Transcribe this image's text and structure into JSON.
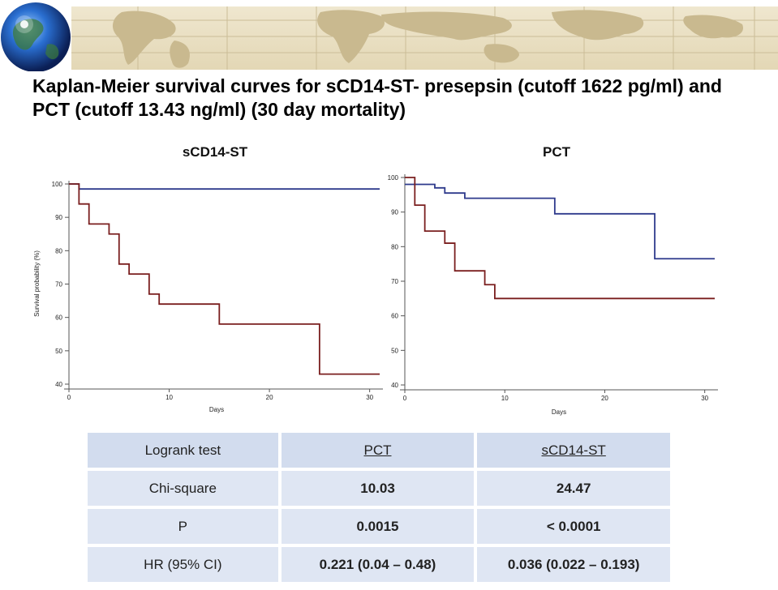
{
  "title": "Kaplan-Meier survival curves for sCD14-ST- presepsin (cutoff 1622 pg/ml) and PCT (cutoff 13.43 ng/ml) (30 day mortality)",
  "colors": {
    "low_group": "#2e3a8c",
    "high_group": "#7a1f1f",
    "banner": "#e8dfc4",
    "table_cell": "#dfe6f3"
  },
  "chart_data": [
    {
      "type": "line",
      "step": true,
      "title": "sCD14-ST",
      "xlabel": "Days",
      "ylabel": "Survival probability (%)",
      "xlim": [
        0,
        31
      ],
      "ylim": [
        40,
        100
      ],
      "xticks": [
        "0",
        "10",
        "20",
        "30"
      ],
      "yticks": [
        "40",
        "50",
        "60",
        "70",
        "80",
        "90",
        "100"
      ],
      "series": [
        {
          "color": "#2e3a8c",
          "x": [
            0,
            1,
            31
          ],
          "y": [
            100,
            98.5,
            98.5
          ]
        },
        {
          "color": "#7a1f1f",
          "x": [
            0,
            1,
            2,
            4,
            5,
            6,
            8,
            9,
            15,
            25,
            31
          ],
          "y": [
            100,
            94,
            88,
            85,
            76,
            73,
            67,
            64,
            58,
            43,
            43
          ]
        }
      ]
    },
    {
      "type": "line",
      "step": true,
      "title": "PCT",
      "xlabel": "Days",
      "ylabel": "",
      "xlim": [
        0,
        31
      ],
      "ylim": [
        40,
        100
      ],
      "xticks": [
        "0",
        "10",
        "20",
        "30"
      ],
      "yticks": [
        "40",
        "50",
        "60",
        "70",
        "80",
        "90",
        "100"
      ],
      "series": [
        {
          "color": "#2e3a8c",
          "x": [
            0,
            3,
            4,
            6,
            8,
            15,
            25,
            31
          ],
          "y": [
            98,
            97,
            95.5,
            94,
            94,
            89.5,
            76.5,
            76.5
          ]
        },
        {
          "color": "#7a1f1f",
          "x": [
            0,
            1,
            2,
            4,
            5,
            8,
            9,
            31
          ],
          "y": [
            100,
            92,
            84.5,
            81,
            73,
            69,
            65,
            65
          ]
        }
      ]
    }
  ],
  "table": {
    "headers": [
      "Logrank test",
      "PCT",
      "sCD14-ST"
    ],
    "rows": [
      {
        "label": "Chi-square",
        "pct": "10.03",
        "scd14": "24.47"
      },
      {
        "label": "P",
        "pct": "0.0015",
        "scd14": "< 0.0001"
      },
      {
        "label": "HR (95% CI)",
        "pct": "0.221 (0.04 – 0.48)",
        "scd14": "0.036 (0.022 – 0.193)"
      }
    ]
  }
}
